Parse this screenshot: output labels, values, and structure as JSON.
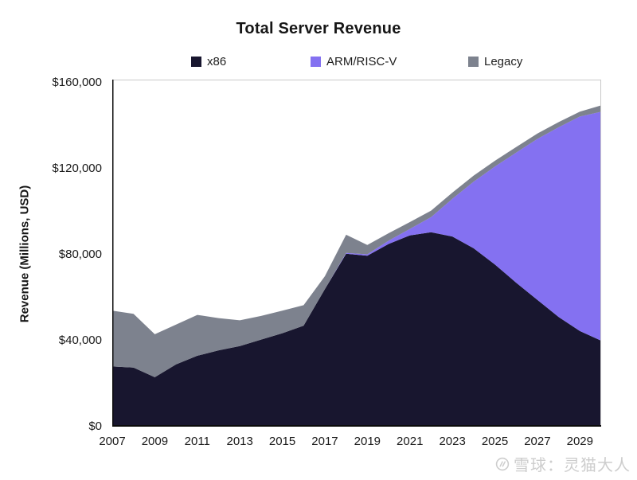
{
  "title": "Total Server Revenue",
  "legend": [
    {
      "label": "x86",
      "color": "#18162f"
    },
    {
      "label": "ARM/RISC-V",
      "color": "#8471f1"
    },
    {
      "label": "Legacy",
      "color": "#7d828e"
    }
  ],
  "y_axis": {
    "label": "Revenue (Millions, USD)",
    "ticks": [
      {
        "label": "$160,000",
        "value": 160000
      },
      {
        "label": "$120,000",
        "value": 120000
      },
      {
        "label": "$80,000",
        "value": 80000
      },
      {
        "label": "$40,000",
        "value": 40000
      },
      {
        "label": "$0",
        "value": 0
      }
    ]
  },
  "x_axis": {
    "ticks": [
      {
        "label": "2007",
        "value": 2007
      },
      {
        "label": "2009",
        "value": 2009
      },
      {
        "label": "2011",
        "value": 2011
      },
      {
        "label": "2013",
        "value": 2013
      },
      {
        "label": "2015",
        "value": 2015
      },
      {
        "label": "2017",
        "value": 2017
      },
      {
        "label": "2019",
        "value": 2019
      },
      {
        "label": "2021",
        "value": 2021
      },
      {
        "label": "2023",
        "value": 2023
      },
      {
        "label": "2025",
        "value": 2025
      },
      {
        "label": "2027",
        "value": 2027
      },
      {
        "label": "2029",
        "value": 2029
      }
    ]
  },
  "watermark": {
    "icon": "xueqiu-logo",
    "text": "雪球：灵猫大人"
  },
  "colors": {
    "x86": "#18162f",
    "arm": "#8471f1",
    "legacy": "#7d828e",
    "axis": "#0b0b0b",
    "plot_border": "#c9c9c9",
    "watermark": "#cdcdcd"
  },
  "chart_data": {
    "type": "area",
    "stacked": true,
    "title": "Total Server Revenue",
    "xlabel": "",
    "ylabel": "Revenue (Millions, USD)",
    "ylim": [
      0,
      160000
    ],
    "xlim": [
      2007,
      2030
    ],
    "grid": false,
    "legend_position": "top",
    "x": [
      2007,
      2008,
      2009,
      2010,
      2011,
      2012,
      2013,
      2014,
      2015,
      2016,
      2017,
      2018,
      2019,
      2020,
      2021,
      2022,
      2023,
      2024,
      2025,
      2026,
      2027,
      2028,
      2029,
      2030
    ],
    "series": [
      {
        "name": "x86",
        "color": "#18162f",
        "values": [
          28000,
          27500,
          23000,
          29000,
          33000,
          35500,
          37500,
          40500,
          43500,
          47000,
          64000,
          80500,
          79500,
          85000,
          89000,
          90500,
          88500,
          83000,
          75500,
          67000,
          59000,
          51000,
          44500,
          40000
        ]
      },
      {
        "name": "ARM/RISC-V",
        "color": "#8471f1",
        "values": [
          0,
          0,
          0,
          0,
          0,
          0,
          0,
          0,
          0,
          0,
          0,
          300,
          700,
          1500,
          3000,
          7000,
          17500,
          31000,
          45500,
          60500,
          74900,
          88300,
          99800,
          106500
        ]
      },
      {
        "name": "Legacy",
        "color": "#7d828e",
        "values": [
          26000,
          25000,
          20000,
          18500,
          19000,
          15000,
          12000,
          11000,
          10500,
          9500,
          6000,
          8500,
          4300,
          3500,
          3200,
          3000,
          2900,
          2800,
          2700,
          2600,
          2500,
          2400,
          2300,
          3000
        ]
      }
    ]
  }
}
